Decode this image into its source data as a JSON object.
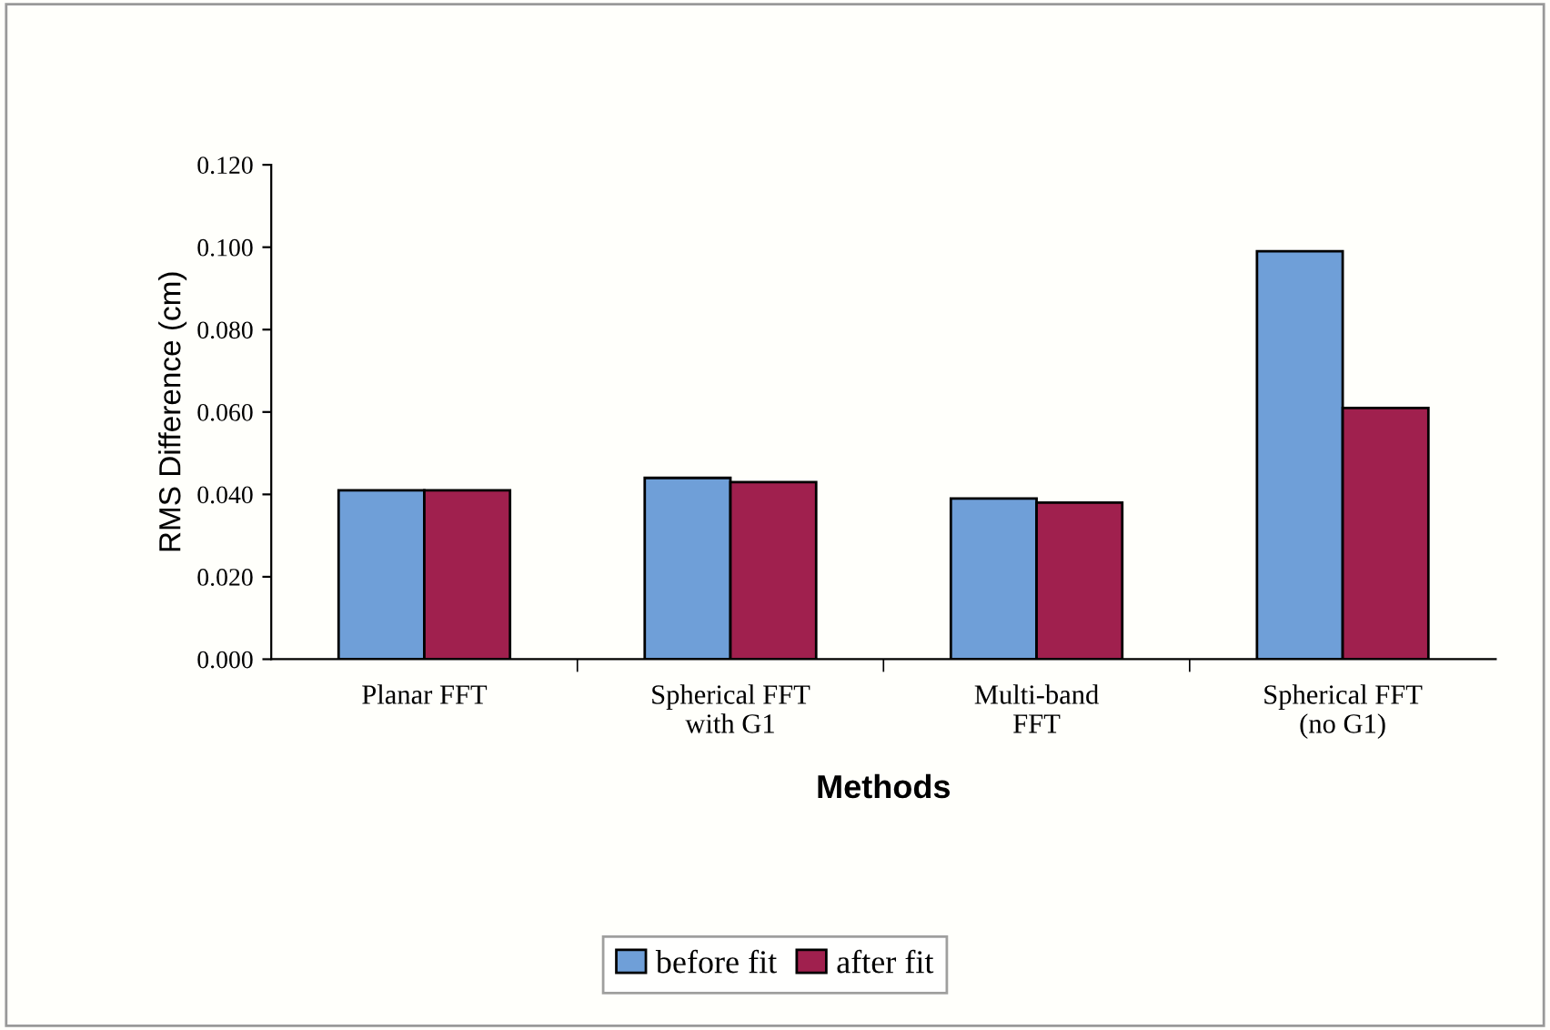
{
  "chart_data": {
    "type": "bar",
    "xlabel": "Methods",
    "ylabel": "RMS Difference (cm)",
    "categories": [
      "Planar FFT",
      "Spherical FFT\nwith G1",
      "Multi-band\nFFT",
      "Spherical FFT\n(no G1)"
    ],
    "series": [
      {
        "name": "before fit",
        "color": "#6f9fd8",
        "values": [
          0.041,
          0.044,
          0.039,
          0.099
        ]
      },
      {
        "name": "after fit",
        "color": "#a0204e",
        "values": [
          0.041,
          0.043,
          0.038,
          0.061
        ]
      }
    ],
    "ylim": [
      0,
      0.12
    ],
    "yticks": [
      {
        "value": 0,
        "label": "0.000"
      },
      {
        "value": 0.02,
        "label": "0.020"
      },
      {
        "value": 0.04,
        "label": "0.040"
      },
      {
        "value": 0.06,
        "label": "0.060"
      },
      {
        "value": 0.08,
        "label": "0.080"
      },
      {
        "value": 0.1,
        "label": "0.100"
      },
      {
        "value": 0.12,
        "label": "0.120"
      }
    ],
    "grid": false,
    "legend": "bottom"
  }
}
